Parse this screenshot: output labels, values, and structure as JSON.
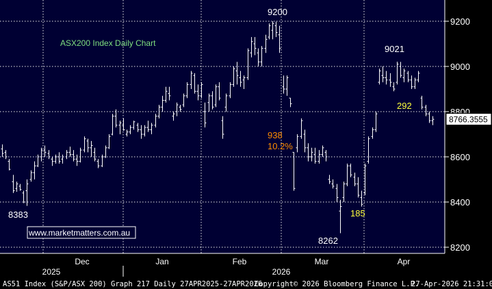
{
  "chart_data": {
    "type": "ohlc",
    "title": "ASX200 Index Daily Chart",
    "watermark": "www.marketmatters.com.au",
    "ylim": [
      8150,
      9290
    ],
    "yticks": [
      8200,
      8400,
      8600,
      8800,
      9000,
      9200
    ],
    "y_tick_labels": [
      "8200",
      "8400",
      "8600",
      "8800",
      "9000",
      "9200"
    ],
    "current_value_label": "8766.3555",
    "current_value": 8766.3555,
    "x_month_labels": [
      "Dec",
      "Jan",
      "Feb",
      "Mar",
      "Apr"
    ],
    "x_year_labels": [
      "2025",
      "2026"
    ],
    "grid": true,
    "colors": {
      "background": "#000000",
      "plot_background": "#000033",
      "grid": "#e8e8e8",
      "bars": "#ffffff",
      "title": "#7fdf7f",
      "orange": "#ff8c00",
      "yellow": "#ffff3c",
      "axis_text": "#ffffff"
    },
    "annotations": [
      {
        "text": "9200",
        "color": "white"
      },
      {
        "text": "9021",
        "color": "white"
      },
      {
        "text": "8383",
        "color": "white"
      },
      {
        "text": "8262",
        "color": "white"
      },
      {
        "text": "938",
        "color": "orange"
      },
      {
        "text": "10.2%",
        "color": "orange"
      },
      {
        "text": "292",
        "color": "yellow"
      },
      {
        "text": "185",
        "color": "yellow"
      }
    ],
    "series": [
      {
        "ohlc": [
          [
            8635,
            8655,
            8600,
            8615
          ],
          [
            8620,
            8630,
            8590,
            8600
          ],
          [
            8580,
            8590,
            8540,
            8545
          ],
          [
            8490,
            8520,
            8440,
            8450
          ],
          [
            8460,
            8490,
            8445,
            8480
          ],
          [
            8470,
            8480,
            8450,
            8455
          ],
          [
            8440,
            8450,
            8395,
            8400
          ],
          [
            8450,
            8500,
            8383,
            8480
          ],
          [
            8500,
            8540,
            8490,
            8530
          ],
          [
            8530,
            8580,
            8500,
            8560
          ],
          [
            8560,
            8610,
            8555,
            8600
          ],
          [
            8600,
            8640,
            8580,
            8630
          ],
          [
            8630,
            8650,
            8600,
            8620
          ],
          [
            8615,
            8630,
            8590,
            8600
          ],
          [
            8590,
            8600,
            8560,
            8580
          ],
          [
            8580,
            8610,
            8570,
            8600
          ],
          [
            8600,
            8620,
            8570,
            8580
          ],
          [
            8590,
            8610,
            8570,
            8600
          ],
          [
            8600,
            8630,
            8590,
            8620
          ],
          [
            8620,
            8645,
            8600,
            8610
          ],
          [
            8610,
            8630,
            8580,
            8590
          ],
          [
            8590,
            8610,
            8560,
            8580
          ],
          [
            8580,
            8640,
            8575,
            8630
          ],
          [
            8630,
            8690,
            8620,
            8680
          ],
          [
            8670,
            8680,
            8620,
            8640
          ],
          [
            8640,
            8670,
            8600,
            8650
          ],
          [
            8620,
            8640,
            8580,
            8590
          ],
          [
            8580,
            8590,
            8550,
            8560
          ],
          [
            8560,
            8610,
            8555,
            8600
          ],
          [
            8600,
            8650,
            8595,
            8640
          ],
          [
            8640,
            8700,
            8635,
            8690
          ],
          [
            8700,
            8790,
            8695,
            8780
          ],
          [
            8780,
            8810,
            8730,
            8740
          ],
          [
            8740,
            8760,
            8700,
            8750
          ],
          [
            8740,
            8770,
            8715,
            8720
          ],
          [
            8700,
            8720,
            8690,
            8710
          ],
          [
            8710,
            8740,
            8700,
            8730
          ],
          [
            8730,
            8760,
            8720,
            8755
          ],
          [
            8740,
            8750,
            8710,
            8720
          ],
          [
            8720,
            8740,
            8680,
            8700
          ],
          [
            8700,
            8740,
            8690,
            8730
          ],
          [
            8730,
            8760,
            8710,
            8720
          ],
          [
            8720,
            8750,
            8700,
            8740
          ],
          [
            8740,
            8790,
            8730,
            8780
          ],
          [
            8780,
            8830,
            8770,
            8820
          ],
          [
            8820,
            8870,
            8800,
            8850
          ],
          [
            8850,
            8910,
            8840,
            8890
          ],
          [
            8880,
            8910,
            8850,
            8870
          ],
          [
            8780,
            8800,
            8760,
            8790
          ],
          [
            8800,
            8840,
            8780,
            8830
          ],
          [
            8820,
            8830,
            8800,
            8810
          ],
          [
            8830,
            8880,
            8820,
            8870
          ],
          [
            8870,
            8930,
            8860,
            8920
          ],
          [
            8920,
            8980,
            8900,
            8970
          ],
          [
            8960,
            8970,
            8880,
            8890
          ],
          [
            8890,
            8920,
            8850,
            8870
          ],
          [
            8870,
            8930,
            8860,
            8920
          ],
          [
            8800,
            8840,
            8730,
            8750
          ],
          [
            8840,
            8880,
            8800,
            8870
          ],
          [
            8870,
            8890,
            8810,
            8820
          ],
          [
            8830,
            8920,
            8820,
            8910
          ],
          [
            8910,
            8930,
            8850,
            8860
          ],
          [
            8760,
            8780,
            8680,
            8700
          ],
          [
            8820,
            8880,
            8800,
            8870
          ],
          [
            8870,
            8930,
            8860,
            8920
          ],
          [
            8920,
            9000,
            8910,
            8990
          ],
          [
            8980,
            9020,
            8920,
            8960
          ],
          [
            8950,
            8980,
            8910,
            8930
          ],
          [
            8940,
            8960,
            8900,
            8950
          ],
          [
            8950,
            9080,
            8940,
            9070
          ],
          [
            9060,
            9130,
            9040,
            9110
          ],
          [
            9100,
            9130,
            9050,
            9080
          ],
          [
            9060,
            9080,
            9000,
            9020
          ],
          [
            9020,
            9090,
            9000,
            9080
          ],
          [
            9080,
            9140,
            9060,
            9120
          ],
          [
            9130,
            9190,
            9120,
            9180
          ],
          [
            9160,
            9200,
            9120,
            9190
          ],
          [
            9180,
            9198,
            9130,
            9150
          ],
          [
            9140,
            9180,
            9060,
            9080
          ],
          [
            8910,
            8960,
            8880,
            8900
          ],
          [
            8900,
            8960,
            8870,
            8950
          ],
          [
            8860,
            8860,
            8820,
            8835
          ],
          [
            8620,
            8620,
            8450,
            8460
          ],
          [
            8640,
            8700,
            8620,
            8690
          ],
          [
            8690,
            8770,
            8680,
            8760
          ],
          [
            8700,
            8720,
            8620,
            8640
          ],
          [
            8640,
            8660,
            8580,
            8600
          ],
          [
            8600,
            8640,
            8580,
            8620
          ],
          [
            8610,
            8640,
            8570,
            8580
          ],
          [
            8580,
            8630,
            8570,
            8610
          ],
          [
            8610,
            8650,
            8600,
            8640
          ],
          [
            8620,
            8630,
            8580,
            8600
          ],
          [
            8500,
            8520,
            8480,
            8490
          ],
          [
            8480,
            8500,
            8460,
            8470
          ],
          [
            8460,
            8480,
            8400,
            8420
          ],
          [
            8360,
            8410,
            8262,
            8380
          ],
          [
            8420,
            8490,
            8400,
            8480
          ],
          [
            8480,
            8570,
            8470,
            8560
          ],
          [
            8560,
            8570,
            8510,
            8520
          ],
          [
            8510,
            8530,
            8470,
            8480
          ],
          [
            8480,
            8510,
            8420,
            8430
          ],
          [
            8420,
            8450,
            8380,
            8390
          ],
          [
            8440,
            8570,
            8430,
            8560
          ],
          [
            8580,
            8690,
            8570,
            8680
          ],
          [
            8690,
            8730,
            8680,
            8720
          ],
          [
            8720,
            8800,
            8710,
            8790
          ],
          [
            8930,
            8990,
            8920,
            8980
          ],
          [
            8960,
            9000,
            8930,
            8950
          ],
          [
            8950,
            8980,
            8920,
            8940
          ],
          [
            8940,
            8970,
            8910,
            8930
          ],
          [
            8910,
            8930,
            8890,
            8900
          ],
          [
            8930,
            9021,
            8920,
            9010
          ],
          [
            9000,
            9020,
            8950,
            8960
          ],
          [
            8950,
            8990,
            8930,
            8980
          ],
          [
            8970,
            8980,
            8930,
            8940
          ],
          [
            8940,
            8960,
            8900,
            8910
          ],
          [
            8910,
            8950,
            8900,
            8940
          ],
          [
            8940,
            8980,
            8930,
            8970
          ],
          [
            8860,
            8870,
            8810,
            8820
          ],
          [
            8820,
            8830,
            8780,
            8790
          ],
          [
            8790,
            8800,
            8750,
            8760
          ],
          [
            8760,
            8780,
            8740,
            8766
          ]
        ]
      }
    ]
  }
}
